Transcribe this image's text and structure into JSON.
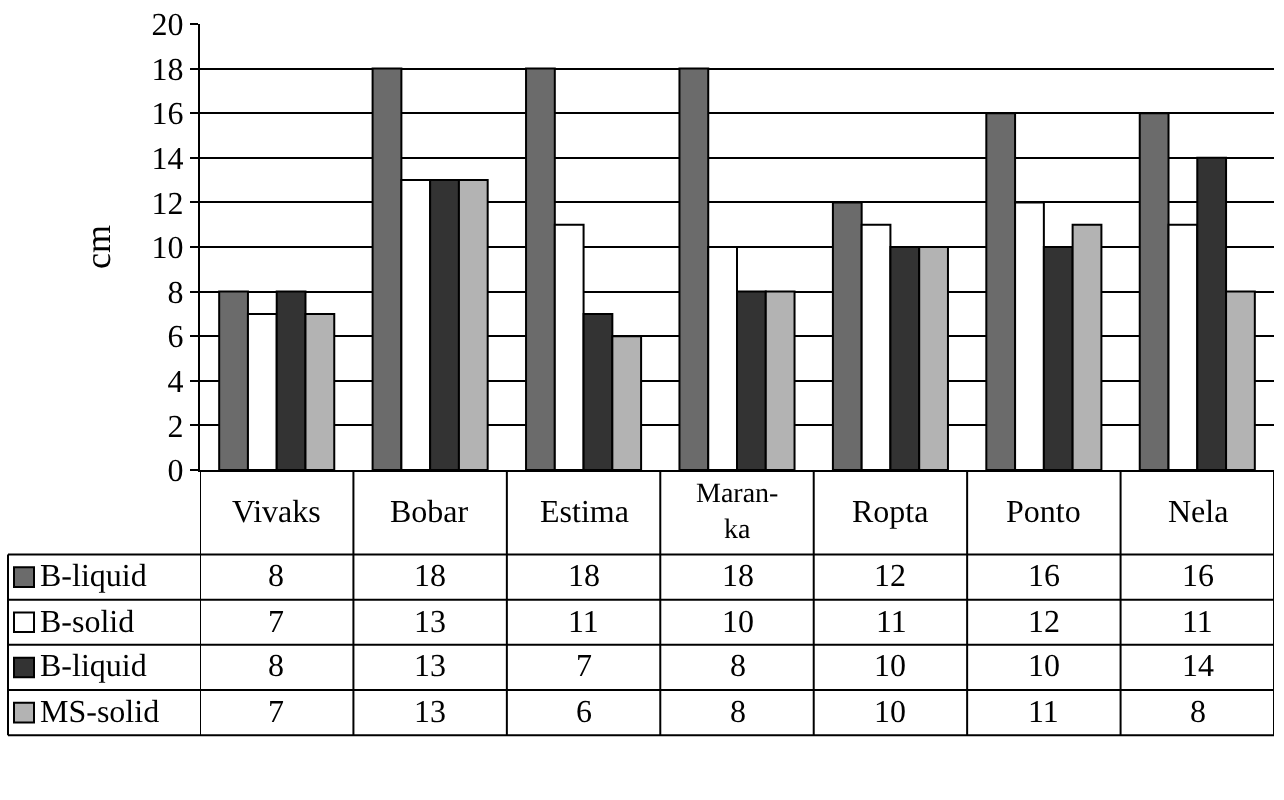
{
  "chart_data": {
    "type": "bar",
    "ylabel": "cm",
    "categories": [
      "Vivaks",
      "Bobar",
      "Estima",
      "Maran-\nka",
      "Ropta",
      "Ponto",
      "Nela"
    ],
    "series": [
      {
        "name": "B-liquid",
        "color": "#6b6b6b",
        "values": [
          8,
          18,
          18,
          18,
          12,
          16,
          16
        ]
      },
      {
        "name": "B-solid",
        "color": "#ffffff",
        "values": [
          7,
          13,
          11,
          10,
          11,
          12,
          11
        ]
      },
      {
        "name": "B-liquid",
        "color": "#333333",
        "values": [
          8,
          13,
          7,
          8,
          10,
          10,
          14
        ]
      },
      {
        "name": "MS-solid",
        "color": "#b3b3b3",
        "values": [
          7,
          13,
          6,
          8,
          10,
          11,
          8
        ]
      }
    ],
    "ylim": [
      0,
      20
    ],
    "yticks": [
      0,
      2,
      4,
      6,
      8,
      10,
      12,
      14,
      16,
      18,
      20
    ],
    "grid": "y",
    "data_labels": true,
    "legend": "bottom left"
  }
}
